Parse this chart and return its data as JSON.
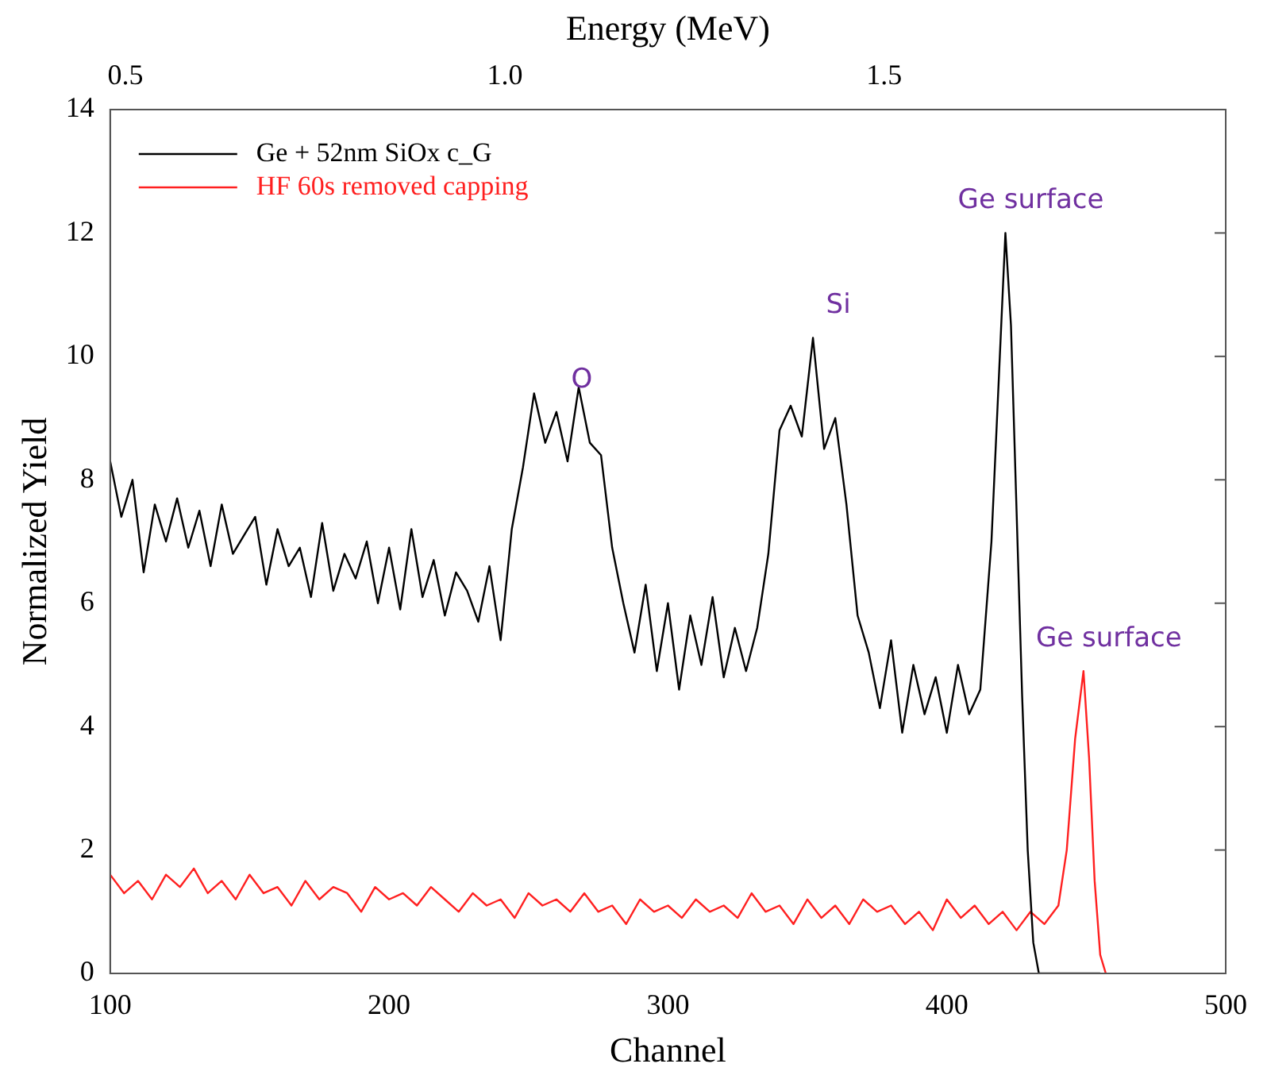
{
  "chart_data": {
    "type": "line",
    "xlabel": "Channel",
    "ylabel": "Normalized Yield",
    "x2label": "Energy (MeV)",
    "xlim": [
      100,
      500
    ],
    "xticks": [
      100,
      200,
      300,
      400,
      500
    ],
    "x2lim": [
      0.48,
      1.95
    ],
    "x2ticks": [
      0.5,
      {
        "value": 1,
        "label": "1.0"
      },
      1.5
    ],
    "ylim": [
      0,
      14
    ],
    "yticks": [
      0,
      2,
      4,
      6,
      8,
      10,
      12,
      14
    ],
    "grid": false,
    "legend": "top left",
    "series": [
      {
        "name": "Ge + 52nm SiOx c_G",
        "color": "#000000",
        "x": [
          100,
          104,
          108,
          112,
          116,
          120,
          124,
          128,
          132,
          136,
          140,
          144,
          148,
          152,
          156,
          160,
          164,
          168,
          172,
          176,
          180,
          184,
          188,
          192,
          196,
          200,
          204,
          208,
          212,
          216,
          220,
          224,
          228,
          232,
          236,
          240,
          244,
          248,
          252,
          256,
          260,
          264,
          268,
          272,
          276,
          280,
          284,
          288,
          292,
          296,
          300,
          304,
          308,
          312,
          316,
          320,
          324,
          328,
          332,
          336,
          340,
          344,
          348,
          352,
          356,
          360,
          364,
          368,
          372,
          376,
          380,
          384,
          388,
          392,
          396,
          400,
          404,
          408,
          412,
          416,
          419,
          421,
          423,
          425,
          427,
          429,
          431,
          433,
          440,
          450,
          455
        ],
        "values": [
          8.3,
          7.4,
          8.0,
          6.5,
          7.6,
          7.0,
          7.7,
          6.9,
          7.5,
          6.6,
          7.6,
          6.8,
          7.1,
          7.4,
          6.3,
          7.2,
          6.6,
          6.9,
          6.1,
          7.3,
          6.2,
          6.8,
          6.4,
          7.0,
          6.0,
          6.9,
          5.9,
          7.2,
          6.1,
          6.7,
          5.8,
          6.5,
          6.2,
          5.7,
          6.6,
          5.4,
          7.2,
          8.2,
          9.4,
          8.6,
          9.1,
          8.3,
          9.5,
          8.6,
          8.4,
          6.9,
          6.0,
          5.2,
          6.3,
          4.9,
          6.0,
          4.6,
          5.8,
          5.0,
          6.1,
          4.8,
          5.6,
          4.9,
          5.6,
          6.8,
          8.8,
          9.2,
          8.7,
          10.3,
          8.5,
          9.0,
          7.6,
          5.8,
          5.2,
          4.3,
          5.4,
          3.9,
          5.0,
          4.2,
          4.8,
          3.9,
          5.0,
          4.2,
          4.6,
          7.0,
          10.0,
          12.0,
          10.5,
          7.5,
          4.5,
          2.0,
          0.5,
          0,
          0,
          0,
          0
        ]
      },
      {
        "name": "HF 60s removed capping",
        "color": "#ff2020",
        "x": [
          100,
          105,
          110,
          115,
          120,
          125,
          130,
          135,
          140,
          145,
          150,
          155,
          160,
          165,
          170,
          175,
          180,
          185,
          190,
          195,
          200,
          205,
          210,
          215,
          220,
          225,
          230,
          235,
          240,
          245,
          250,
          255,
          260,
          265,
          270,
          275,
          280,
          285,
          290,
          295,
          300,
          305,
          310,
          315,
          320,
          325,
          330,
          335,
          340,
          345,
          350,
          355,
          360,
          365,
          370,
          375,
          380,
          385,
          390,
          395,
          400,
          405,
          410,
          415,
          420,
          425,
          430,
          435,
          440,
          443,
          446,
          449,
          451,
          453,
          455,
          457
        ],
        "values": [
          1.6,
          1.3,
          1.5,
          1.2,
          1.6,
          1.4,
          1.7,
          1.3,
          1.5,
          1.2,
          1.6,
          1.3,
          1.4,
          1.1,
          1.5,
          1.2,
          1.4,
          1.3,
          1.0,
          1.4,
          1.2,
          1.3,
          1.1,
          1.4,
          1.2,
          1.0,
          1.3,
          1.1,
          1.2,
          0.9,
          1.3,
          1.1,
          1.2,
          1.0,
          1.3,
          1.0,
          1.1,
          0.8,
          1.2,
          1.0,
          1.1,
          0.9,
          1.2,
          1.0,
          1.1,
          0.9,
          1.3,
          1.0,
          1.1,
          0.8,
          1.2,
          0.9,
          1.1,
          0.8,
          1.2,
          1.0,
          1.1,
          0.8,
          1.0,
          0.7,
          1.2,
          0.9,
          1.1,
          0.8,
          1.0,
          0.7,
          1.0,
          0.8,
          1.1,
          2.0,
          3.8,
          4.9,
          3.5,
          1.5,
          0.3,
          0
        ]
      }
    ],
    "annotations": [
      {
        "text": "O",
        "x": 260,
        "y": 9.1
      },
      {
        "text": "Si",
        "x": 352,
        "y": 10.3
      },
      {
        "text": "Ge surface",
        "x": 421,
        "y": 12.0
      },
      {
        "text": "Ge surface",
        "x": 449,
        "y": 4.9
      }
    ]
  }
}
